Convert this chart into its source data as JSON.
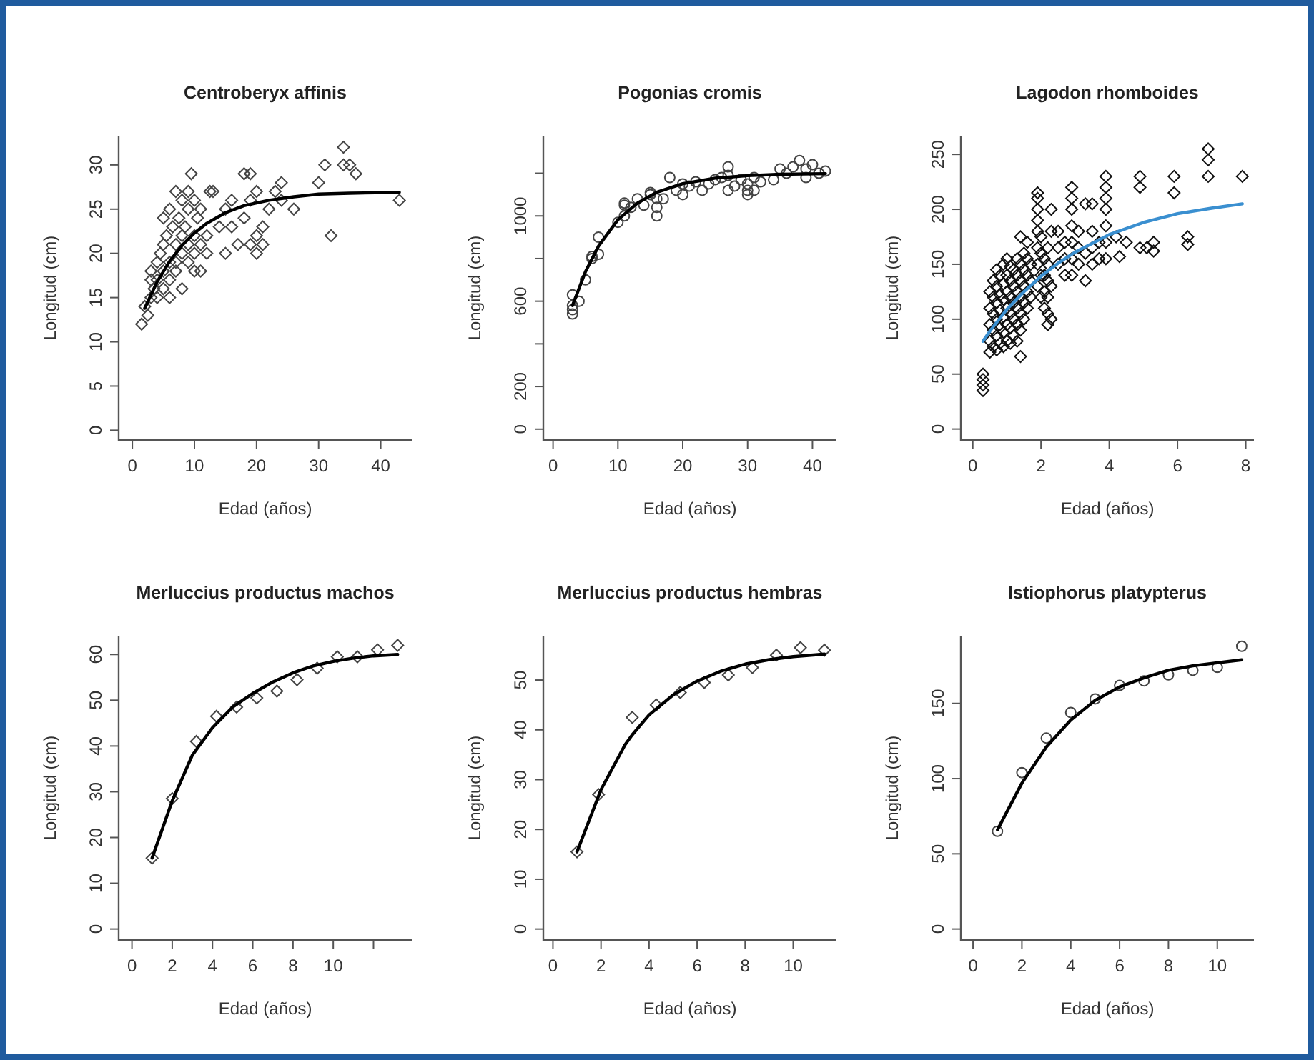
{
  "chart_data": [
    {
      "type": "scatter",
      "title": "Centroberyx affinis",
      "xlabel": "Edad (años)",
      "ylabel": "Longitud (cm)",
      "xlim": [
        -2.2,
        45
      ],
      "ylim": [
        -1.1,
        33.3
      ],
      "xticks": [
        0,
        10,
        20,
        30,
        40
      ],
      "yticks": [
        0,
        5,
        10,
        15,
        20,
        25,
        30
      ],
      "series": [
        {
          "marker": "diamond",
          "color": "#444444",
          "x": [
            1.5,
            2,
            2.5,
            3,
            3,
            3,
            3.5,
            4,
            4,
            4,
            4.5,
            5,
            5,
            5,
            5,
            5.5,
            6,
            6,
            6,
            6,
            6.5,
            7,
            7,
            7,
            7,
            7.5,
            8,
            8,
            8,
            8,
            8.5,
            9,
            9,
            9,
            9,
            9.5,
            10,
            10,
            10,
            10,
            10.5,
            11,
            11,
            11,
            12,
            12,
            12.5,
            13,
            14,
            15,
            15,
            16,
            16,
            17,
            18,
            18,
            19,
            19,
            19,
            20,
            20,
            20,
            21,
            21,
            22,
            23,
            24,
            24,
            26,
            30,
            31,
            32,
            34,
            34,
            35,
            36,
            43
          ],
          "values": [
            12,
            14,
            13,
            15,
            17,
            18,
            16,
            19,
            15,
            17,
            20,
            24,
            21,
            18,
            16,
            22,
            25,
            19,
            17,
            15,
            23,
            27,
            21,
            19,
            18,
            24,
            26,
            22,
            20,
            16,
            23,
            25,
            27,
            21,
            19,
            29,
            26,
            22,
            20,
            18,
            24,
            25,
            21,
            18,
            22,
            20,
            27,
            27,
            23,
            20,
            25,
            23,
            26,
            21,
            24,
            29,
            26,
            21,
            29,
            20,
            27,
            22,
            23,
            21,
            25,
            27,
            28,
            26,
            25,
            28,
            30,
            22,
            32,
            30,
            30,
            29,
            26
          ]
        },
        {
          "type": "line",
          "color": "#000000",
          "x": [
            2,
            4,
            6,
            8,
            10,
            12,
            15,
            18,
            22,
            26,
            30,
            35,
            43
          ],
          "values": [
            13.8,
            16.8,
            19.1,
            20.9,
            22.3,
            23.4,
            24.6,
            25.4,
            26.0,
            26.4,
            26.7,
            26.8,
            26.9
          ]
        }
      ]
    },
    {
      "type": "scatter",
      "title": "Pogonias cromis",
      "xlabel": "Edad (años)",
      "ylabel": "Longitud (cm)",
      "xlim": [
        -1.5,
        43.7
      ],
      "ylim": [
        -51,
        1376
      ],
      "xticks": [
        0,
        10,
        20,
        30,
        40
      ],
      "yticks": [
        0,
        200,
        {
          "value": 400,
          "label": null
        },
        600,
        {
          "value": 800,
          "label": null
        },
        1000,
        {
          "value": 1200,
          "label": null
        }
      ],
      "series": [
        {
          "marker": "circle",
          "color": "#444444",
          "x": [
            3,
            3,
            3,
            3,
            4,
            5,
            6,
            6,
            7,
            7,
            10,
            11,
            11,
            11,
            12,
            13,
            14,
            15,
            15,
            16,
            16,
            16,
            17,
            18,
            19,
            20,
            20,
            21,
            22,
            23,
            24,
            25,
            26,
            27,
            27,
            27,
            28,
            29,
            30,
            30,
            30,
            31,
            31,
            32,
            34,
            35,
            36,
            37,
            38,
            39,
            39,
            40,
            41,
            42
          ],
          "values": [
            560,
            540,
            580,
            630,
            600,
            700,
            800,
            810,
            820,
            900,
            970,
            1000,
            1050,
            1060,
            1040,
            1080,
            1050,
            1100,
            1110,
            1000,
            1040,
            1080,
            1080,
            1180,
            1120,
            1100,
            1150,
            1140,
            1160,
            1120,
            1150,
            1170,
            1180,
            1230,
            1120,
            1190,
            1140,
            1170,
            1100,
            1120,
            1150,
            1120,
            1180,
            1160,
            1170,
            1220,
            1200,
            1230,
            1260,
            1180,
            1220,
            1240,
            1200,
            1210
          ]
        },
        {
          "type": "line",
          "color": "#000000",
          "x": [
            3,
            5,
            7,
            10,
            13,
            16,
            20,
            25,
            30,
            35,
            42
          ],
          "values": [
            580,
            739,
            858,
            982,
            1060,
            1111,
            1151,
            1177,
            1189,
            1195,
            1198
          ]
        }
      ]
    },
    {
      "type": "scatter",
      "title": "Lagodon rhomboides",
      "xlabel": "Edad (años)",
      "ylabel": "Longitud (cm)",
      "xlim": [
        -0.35,
        8.24
      ],
      "ylim": [
        -10,
        267
      ],
      "xticks": [
        0,
        2,
        4,
        6,
        8
      ],
      "yticks": [
        0,
        50,
        100,
        150,
        200,
        250
      ],
      "series": [
        {
          "marker": "diamond",
          "color": "#111111",
          "x": [
            0.3,
            0.3,
            0.3,
            0.3,
            0.5,
            0.5,
            0.5,
            0.5,
            0.5,
            0.6,
            0.6,
            0.6,
            0.6,
            0.6,
            0.7,
            0.7,
            0.7,
            0.7,
            0.7,
            0.7,
            0.8,
            0.8,
            0.8,
            0.8,
            0.8,
            0.9,
            0.9,
            0.9,
            0.9,
            0.9,
            0.9,
            1.0,
            1.0,
            1.0,
            1.0,
            1.0,
            1.0,
            1.1,
            1.1,
            1.1,
            1.1,
            1.1,
            1.1,
            1.2,
            1.2,
            1.2,
            1.2,
            1.2,
            1.3,
            1.3,
            1.3,
            1.3,
            1.3,
            1.3,
            1.4,
            1.4,
            1.4,
            1.4,
            1.4,
            1.4,
            1.4,
            1.5,
            1.5,
            1.5,
            1.5,
            1.5,
            1.6,
            1.6,
            1.6,
            1.6,
            1.6,
            1.7,
            1.7,
            1.7,
            1.9,
            1.9,
            1.9,
            1.9,
            1.9,
            1.9,
            1.9,
            1.9,
            2.0,
            2.0,
            2.0,
            2.0,
            2.1,
            2.1,
            2.1,
            2.1,
            2.2,
            2.2,
            2.2,
            2.2,
            2.2,
            2.2,
            2.3,
            2.3,
            2.3,
            2.3,
            2.5,
            2.5,
            2.5,
            2.7,
            2.7,
            2.7,
            2.9,
            2.9,
            2.9,
            2.9,
            2.9,
            2.9,
            2.9,
            3.1,
            3.1,
            3.1,
            3.3,
            3.3,
            3.3,
            3.5,
            3.5,
            3.5,
            3.5,
            3.7,
            3.7,
            3.9,
            3.9,
            3.9,
            3.9,
            3.9,
            3.9,
            3.9,
            4.2,
            4.3,
            4.5,
            4.9,
            4.9,
            4.9,
            5.1,
            5.3,
            5.3,
            5.9,
            5.9,
            6.3,
            6.3,
            6.9,
            6.9,
            6.9,
            7.9
          ],
          "values": [
            35,
            40,
            45,
            50,
            70,
            80,
            95,
            110,
            125,
            75,
            90,
            105,
            120,
            135,
            72,
            85,
            100,
            115,
            130,
            145,
            78,
            92,
            108,
            122,
            140,
            75,
            88,
            102,
            118,
            132,
            150,
            80,
            95,
            110,
            125,
            140,
            155,
            78,
            92,
            105,
            120,
            135,
            148,
            85,
            100,
            115,
            130,
            145,
            80,
            95,
            110,
            125,
            140,
            155,
            66,
            90,
            105,
            120,
            135,
            150,
            175,
            100,
            115,
            130,
            145,
            160,
            110,
            125,
            140,
            155,
            170,
            120,
            135,
            150,
            130,
            150,
            165,
            180,
            190,
            200,
            210,
            215,
            120,
            140,
            160,
            175,
            110,
            125,
            140,
            155,
            95,
            105,
            120,
            135,
            150,
            165,
            100,
            130,
            200,
            180,
            150,
            165,
            180,
            140,
            155,
            170,
            140,
            155,
            170,
            185,
            200,
            210,
            220,
            150,
            165,
            180,
            135,
            205,
            160,
            150,
            165,
            180,
            205,
            155,
            170,
            155,
            170,
            185,
            200,
            210,
            220,
            230,
            175,
            157,
            170,
            220,
            230,
            165,
            165,
            162,
            170,
            215,
            230,
            168,
            175,
            230,
            245,
            255,
            230
          ]
        },
        {
          "type": "line",
          "color": "#3a8fd0",
          "x": [
            0.3,
            0.5,
            1,
            1.5,
            2,
            2.5,
            3,
            4,
            5,
            6,
            7,
            7.9
          ],
          "values": [
            80,
            89,
            109,
            125,
            139,
            151,
            161,
            177,
            188,
            196,
            201,
            205
          ]
        }
      ]
    },
    {
      "type": "scatter",
      "title": "Merluccius productus machos",
      "xlabel": "Edad (años)",
      "ylabel": "Longitud (cm)",
      "xlim": [
        -0.66,
        13.9
      ],
      "ylim": [
        -2.4,
        64.1
      ],
      "xticks": [
        0,
        2,
        4,
        6,
        8,
        10,
        {
          "value": 12,
          "label": null
        }
      ],
      "yticks": [
        0,
        10,
        20,
        30,
        40,
        50,
        60
      ],
      "series": [
        {
          "marker": "diamond",
          "color": "#444444",
          "x": [
            1,
            2,
            3.2,
            4.2,
            5.2,
            6.2,
            7.2,
            8.2,
            9.2,
            10.2,
            11.2,
            12.2,
            13.2
          ],
          "values": [
            15.5,
            28.5,
            41,
            46.5,
            48.5,
            50.5,
            52,
            54.5,
            57,
            59.5,
            59.5,
            61,
            62
          ]
        },
        {
          "type": "line",
          "color": "#000000",
          "x": [
            1,
            2,
            3,
            4,
            5,
            6,
            7,
            8,
            9,
            10,
            11,
            12,
            13.2
          ],
          "values": [
            15.5,
            28,
            38,
            44,
            48.5,
            51.5,
            54,
            56,
            57.5,
            58.5,
            59.2,
            59.7,
            60
          ]
        }
      ]
    },
    {
      "type": "scatter",
      "title": "Merluccius productus hembras",
      "xlabel": "Edad (años)",
      "ylabel": "Longitud (cm)",
      "xlim": [
        -0.4,
        11.8
      ],
      "ylim": [
        -2.2,
        58.9
      ],
      "xticks": [
        0,
        2,
        4,
        6,
        8,
        10
      ],
      "yticks": [
        0,
        10,
        20,
        30,
        40,
        50
      ],
      "series": [
        {
          "marker": "diamond",
          "color": "#444444",
          "x": [
            1,
            1.9,
            3.3,
            4.3,
            5.3,
            6.3,
            7.3,
            8.3,
            9.3,
            10.3,
            11.3
          ],
          "values": [
            15.5,
            27,
            42.5,
            45,
            47.5,
            49.5,
            51,
            52.5,
            55,
            56.5,
            56
          ]
        },
        {
          "type": "line",
          "color": "#000000",
          "x": [
            1,
            2,
            3,
            3.3,
            4,
            5,
            6,
            7,
            8,
            9,
            10,
            11.3
          ],
          "values": [
            15.5,
            28,
            37,
            39,
            43,
            47,
            49.8,
            51.8,
            53.2,
            54.1,
            54.7,
            55.2
          ]
        }
      ]
    },
    {
      "type": "scatter",
      "title": "Istiophorus platypterus",
      "xlabel": "Edad (años)",
      "ylabel": "Longitud (cm)",
      "xlim": [
        -0.5,
        11.5
      ],
      "ylim": [
        -7.3,
        195
      ],
      "xticks": [
        0,
        2,
        4,
        6,
        8,
        10
      ],
      "yticks": [
        0,
        50,
        100,
        150
      ],
      "series": [
        {
          "marker": "circle",
          "color": "#444444",
          "x": [
            1,
            2,
            3,
            4,
            5,
            6,
            7,
            8,
            9,
            10,
            11
          ],
          "values": [
            65,
            104,
            127,
            144,
            153,
            162,
            165,
            169,
            172,
            174,
            188
          ]
        },
        {
          "type": "line",
          "color": "#000000",
          "x": [
            1,
            2,
            3,
            4,
            5,
            6,
            7,
            8,
            9,
            10,
            11
          ],
          "values": [
            66,
            97,
            121,
            139,
            152,
            161,
            167,
            172,
            175,
            177,
            179
          ]
        }
      ]
    }
  ]
}
